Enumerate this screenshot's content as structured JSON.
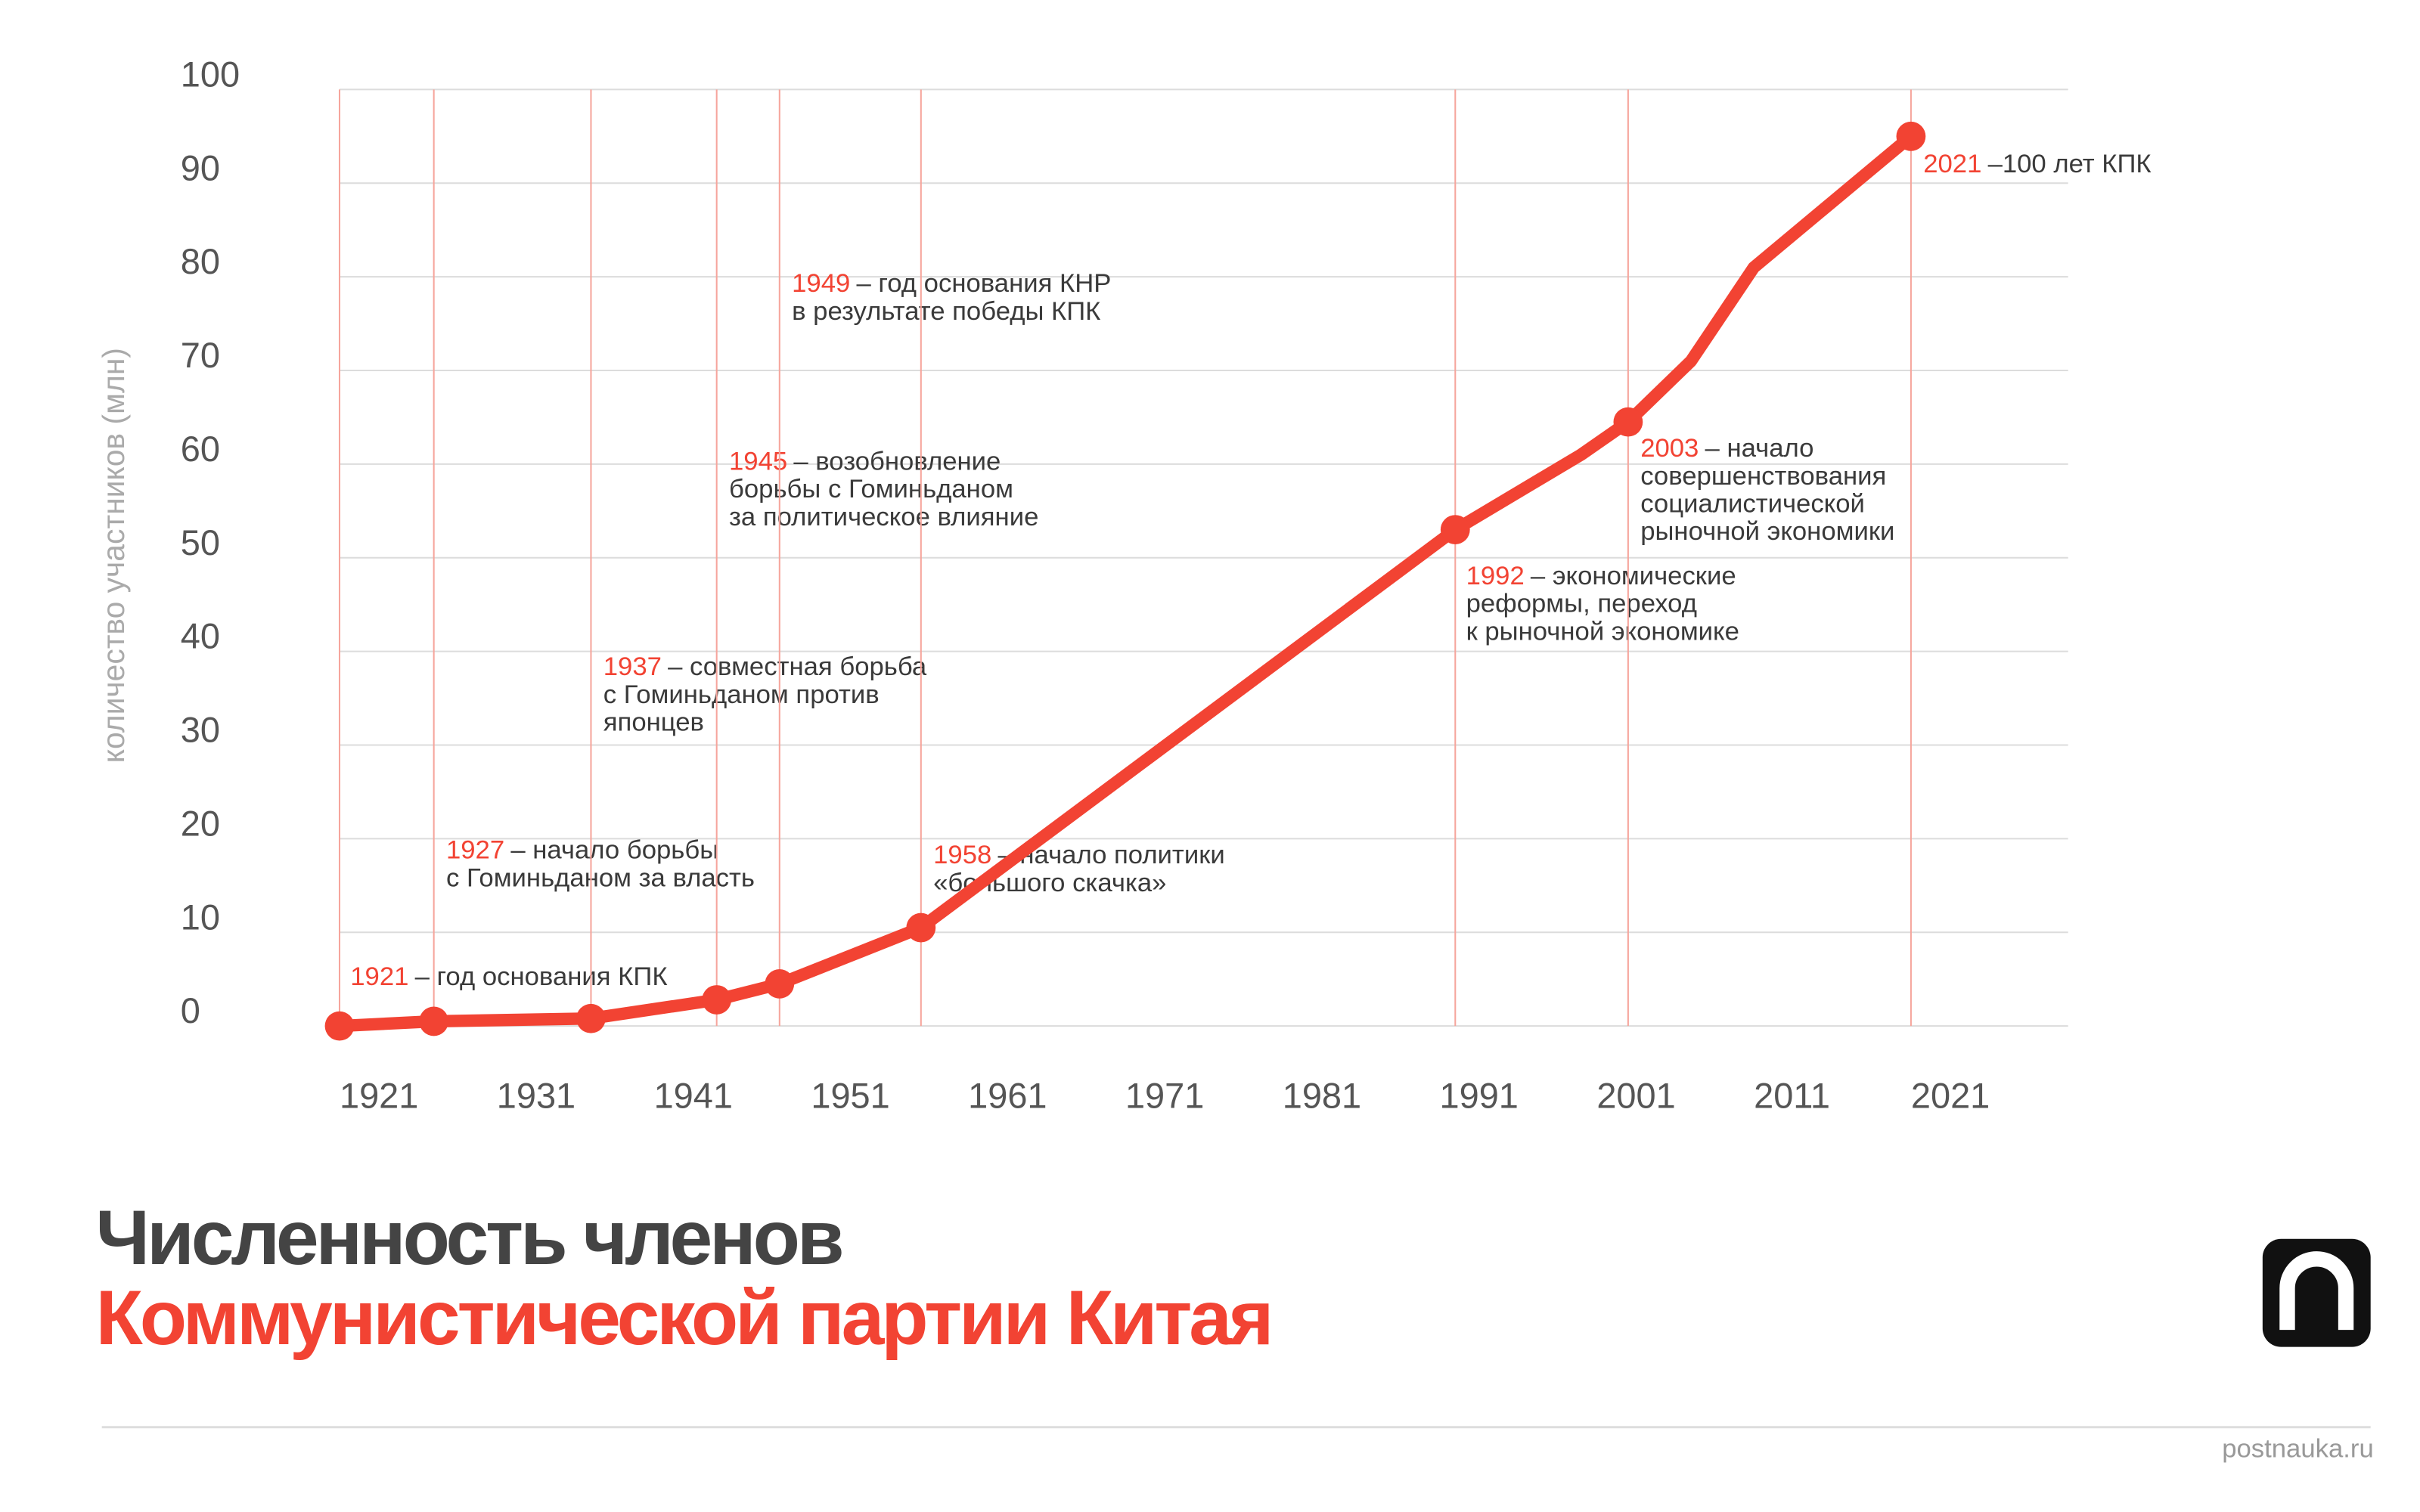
{
  "chart_data": {
    "type": "line",
    "title": [
      "Численность членов",
      "Коммунистической партии Китая"
    ],
    "y_label": "количество участников (млн)",
    "x": [
      1921,
      1927,
      1937,
      1945,
      1949,
      1958,
      1992,
      2000,
      2003,
      2007,
      2011,
      2021
    ],
    "values": [
      0,
      0.5,
      0.8,
      2.8,
      4.5,
      10.5,
      53,
      61,
      64.5,
      71,
      81,
      95
    ],
    "color": "#f24333",
    "xlim": [
      1921,
      2031
    ],
    "xticks": [
      1921,
      1931,
      1941,
      1951,
      1961,
      1971,
      1981,
      1991,
      2001,
      2011,
      2021
    ],
    "ylim": [
      0,
      100
    ],
    "yticks": [
      0,
      10,
      20,
      30,
      40,
      50,
      60,
      70,
      80,
      90,
      100
    ],
    "grid": true,
    "annotations": [
      {
        "x": 1921,
        "lines": [
          "– год основания КПК"
        ]
      },
      {
        "x": 1927,
        "lines": [
          "– начало борьбы",
          "с Гоминьданом за власть"
        ]
      },
      {
        "x": 1937,
        "lines": [
          "– совместная борьба",
          "с Гоминьданом против",
          "японцев"
        ]
      },
      {
        "x": 1945,
        "lines": [
          "– возобновление",
          "борьбы с Гоминьданом",
          "за политическое влияние"
        ]
      },
      {
        "x": 1949,
        "lines": [
          "– год основания КНР",
          "в результате победы КПК"
        ]
      },
      {
        "x": 1958,
        "lines": [
          "– начало политики",
          "«большого скачка»"
        ]
      },
      {
        "x": 1992,
        "lines": [
          "– экономические",
          "реформы, переход",
          "к рыночной экономике"
        ]
      },
      {
        "x": 2003,
        "lines": [
          "– начало",
          "совершенствования",
          "социалистической",
          "рыночной экономики"
        ]
      },
      {
        "x": 2021,
        "lines": [
          "–100 лет КПК"
        ]
      }
    ]
  },
  "footer": "postnauka.ru"
}
